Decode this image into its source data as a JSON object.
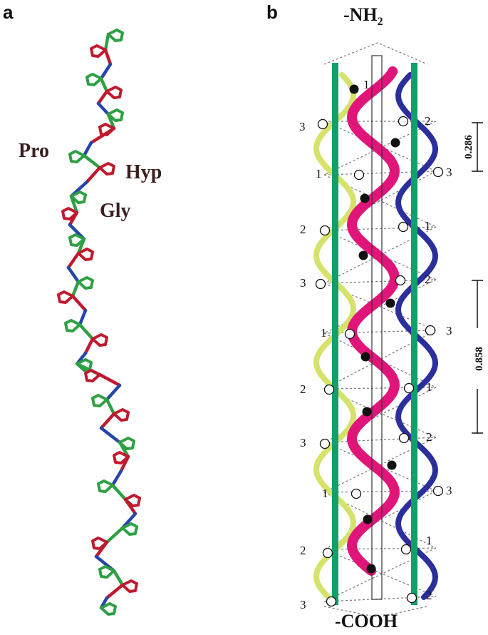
{
  "panel_a": {
    "letter": "a",
    "labels": {
      "pro": "Pro",
      "hyp": "Hyp",
      "gly": "Gly"
    },
    "colors": {
      "pro": "#2ea043",
      "hyp": "#c0192e",
      "gly": "#2645a8"
    }
  },
  "panel_b": {
    "letter": "b",
    "n_terminus": "-NH2",
    "n_terminus_main": "-NH",
    "n_terminus_sub": "2",
    "c_terminus": "-COOH",
    "scale_small": "0.286",
    "scale_large": "0.858",
    "colors": {
      "strand1": "#e0157a",
      "strand2": "#2b2f9c",
      "strand3": "#d6e26a",
      "axis": "#11a06a",
      "dot_filled": "#111111"
    },
    "strand_numbers": {
      "left": [
        "3",
        "1",
        "2",
        "3",
        "1",
        "2",
        "3",
        "1",
        "2",
        "3"
      ],
      "right": [
        "2",
        "3",
        "1",
        "2",
        "3",
        "1",
        "2",
        "3",
        "1",
        "2"
      ],
      "top": "1"
    }
  }
}
